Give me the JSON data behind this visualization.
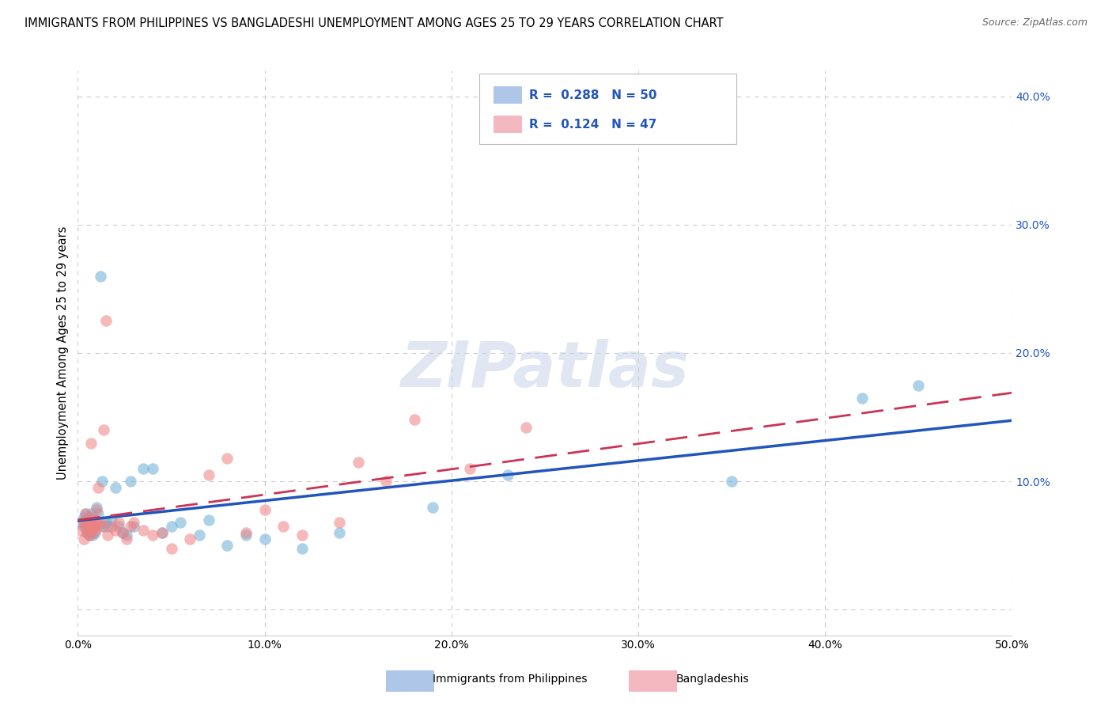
{
  "title": "IMMIGRANTS FROM PHILIPPINES VS BANGLADESHI UNEMPLOYMENT AMONG AGES 25 TO 29 YEARS CORRELATION CHART",
  "source": "Source: ZipAtlas.com",
  "ylabel": "Unemployment Among Ages 25 to 29 years",
  "xlim": [
    0.0,
    0.5
  ],
  "ylim": [
    -0.02,
    0.42
  ],
  "xticks": [
    0.0,
    0.1,
    0.2,
    0.3,
    0.4,
    0.5
  ],
  "xticklabels": [
    "0.0%",
    "10.0%",
    "20.0%",
    "30.0%",
    "40.0%",
    "50.0%"
  ],
  "ytick_vals": [
    0.0,
    0.1,
    0.2,
    0.3,
    0.4
  ],
  "yticklabels_right": [
    "",
    "10.0%",
    "20.0%",
    "30.0%",
    "40.0%"
  ],
  "legend1_color": "#aec6e8",
  "legend2_color": "#f4b8c1",
  "series1_color": "#6aaed6",
  "series2_color": "#f08080",
  "trendline1_color": "#2255bb",
  "trendline2_color": "#cc3355",
  "watermark": "ZIPatlas",
  "background_color": "#ffffff",
  "grid_color": "#cccccc",
  "philippines_x": [
    0.002,
    0.003,
    0.003,
    0.004,
    0.004,
    0.005,
    0.005,
    0.005,
    0.006,
    0.006,
    0.006,
    0.007,
    0.007,
    0.007,
    0.008,
    0.008,
    0.009,
    0.009,
    0.01,
    0.01,
    0.011,
    0.012,
    0.013,
    0.014,
    0.015,
    0.016,
    0.018,
    0.02,
    0.022,
    0.024,
    0.026,
    0.028,
    0.03,
    0.035,
    0.04,
    0.045,
    0.05,
    0.055,
    0.065,
    0.07,
    0.08,
    0.09,
    0.1,
    0.12,
    0.14,
    0.19,
    0.23,
    0.35,
    0.42,
    0.45
  ],
  "philippines_y": [
    0.068,
    0.072,
    0.065,
    0.07,
    0.075,
    0.06,
    0.063,
    0.068,
    0.058,
    0.065,
    0.072,
    0.062,
    0.068,
    0.075,
    0.058,
    0.065,
    0.06,
    0.07,
    0.065,
    0.08,
    0.075,
    0.26,
    0.1,
    0.065,
    0.068,
    0.065,
    0.07,
    0.095,
    0.065,
    0.06,
    0.058,
    0.1,
    0.065,
    0.11,
    0.11,
    0.06,
    0.065,
    0.068,
    0.058,
    0.07,
    0.05,
    0.058,
    0.055,
    0.048,
    0.06,
    0.08,
    0.105,
    0.1,
    0.165,
    0.175
  ],
  "bangladeshi_x": [
    0.002,
    0.003,
    0.003,
    0.004,
    0.004,
    0.005,
    0.005,
    0.006,
    0.006,
    0.007,
    0.007,
    0.008,
    0.008,
    0.009,
    0.009,
    0.01,
    0.01,
    0.011,
    0.012,
    0.013,
    0.014,
    0.015,
    0.016,
    0.018,
    0.02,
    0.022,
    0.024,
    0.026,
    0.028,
    0.03,
    0.035,
    0.04,
    0.045,
    0.05,
    0.06,
    0.07,
    0.08,
    0.09,
    0.1,
    0.11,
    0.12,
    0.14,
    0.15,
    0.165,
    0.18,
    0.21,
    0.24
  ],
  "bangladeshi_y": [
    0.062,
    0.068,
    0.055,
    0.065,
    0.075,
    0.06,
    0.068,
    0.072,
    0.058,
    0.065,
    0.13,
    0.06,
    0.068,
    0.065,
    0.062,
    0.07,
    0.078,
    0.095,
    0.068,
    0.065,
    0.14,
    0.225,
    0.058,
    0.065,
    0.062,
    0.068,
    0.06,
    0.055,
    0.065,
    0.068,
    0.062,
    0.058,
    0.06,
    0.048,
    0.055,
    0.105,
    0.118,
    0.06,
    0.078,
    0.065,
    0.058,
    0.068,
    0.115,
    0.1,
    0.148,
    0.11,
    0.142
  ]
}
